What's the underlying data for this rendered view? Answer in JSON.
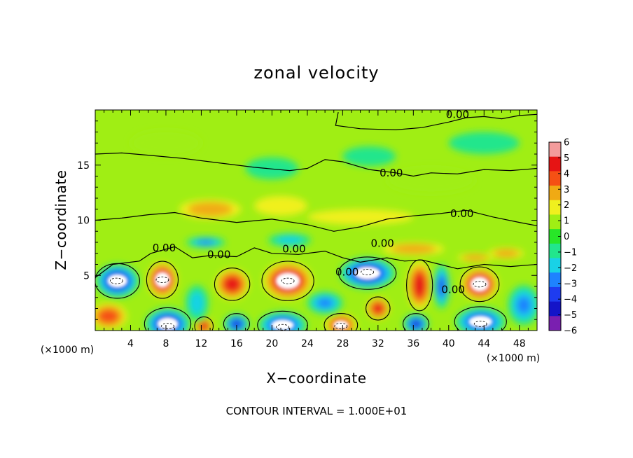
{
  "chart_data": {
    "type": "heatmap",
    "title": "zonal velocity",
    "xlabel": "X−coordinate",
    "ylabel": "Z−coordinate",
    "x_unit_label": "(×1000 m)",
    "y_unit_label": "(×1000 m)",
    "xlim": [
      0,
      50
    ],
    "ylim": [
      0,
      20
    ],
    "x_ticks": [
      4,
      8,
      12,
      16,
      20,
      24,
      28,
      32,
      36,
      40,
      44,
      48
    ],
    "y_ticks": [
      5,
      10,
      15
    ],
    "colorbar": {
      "ticks": [
        6,
        5,
        4,
        3,
        2,
        1,
        0,
        -1,
        -2,
        -3,
        -4,
        -5,
        -6
      ],
      "tick_labels": [
        "6",
        "5",
        "4",
        "3",
        "2",
        "1",
        "0",
        "−1",
        "−2",
        "−3",
        "−4",
        "−5",
        "−6"
      ],
      "min": -6,
      "max": 6,
      "colors": [
        "#7a1fb0",
        "#1414c8",
        "#1e3cf0",
        "#1e82ff",
        "#19d2e6",
        "#22e68c",
        "#28e628",
        "#a0ee14",
        "#f0f01e",
        "#f0aa14",
        "#f55014",
        "#e61414",
        "#f39c9c"
      ]
    },
    "contour_labels": [
      {
        "text": "0.00",
        "x": 41,
        "y": 19.6
      },
      {
        "text": "0.00",
        "x": 33.5,
        "y": 14.3
      },
      {
        "text": "0.00",
        "x": 41.5,
        "y": 10.6
      },
      {
        "text": "0.00",
        "x": 32.5,
        "y": 7.9
      },
      {
        "text": "0.00",
        "x": 22.5,
        "y": 7.4
      },
      {
        "text": "0.00",
        "x": 7.8,
        "y": 7.5
      },
      {
        "text": "0.00",
        "x": 14,
        "y": 6.9
      },
      {
        "text": "0.00",
        "x": 28.5,
        "y": 5.3
      },
      {
        "text": "0.00",
        "x": 40.5,
        "y": 3.7
      }
    ],
    "features": [
      {
        "x": 2.5,
        "z": 4.5,
        "rx": 2.4,
        "rz": 1.5,
        "v": -5.5,
        "white": true
      },
      {
        "x": 7.6,
        "z": 4.6,
        "rx": 1.7,
        "rz": 1.6,
        "v": 5.5,
        "white": true
      },
      {
        "x": 15.5,
        "z": 4.2,
        "rx": 1.9,
        "rz": 1.4,
        "v": 4.8
      },
      {
        "x": 21.8,
        "z": 4.5,
        "rx": 2.8,
        "rz": 1.7,
        "v": 5.6,
        "white": true
      },
      {
        "x": 30.8,
        "z": 5.2,
        "rx": 3.1,
        "rz": 1.4,
        "v": -5.6,
        "white": true
      },
      {
        "x": 36.7,
        "z": 4.1,
        "rx": 1.4,
        "rz": 2.2,
        "v": 4.8
      },
      {
        "x": 43.5,
        "z": 4.2,
        "rx": 2.1,
        "rz": 1.5,
        "v": 5.5,
        "white": true
      },
      {
        "x": 1.5,
        "z": 1.3,
        "rx": 2.1,
        "rz": 1.2,
        "v": 4.3
      },
      {
        "x": 8.2,
        "z": 0.6,
        "rx": 2.5,
        "rz": 1.4,
        "v": -5.6,
        "white": true
      },
      {
        "x": 12.3,
        "z": 0.4,
        "rx": 1.0,
        "rz": 0.8,
        "v": 4.5
      },
      {
        "x": 16.0,
        "z": 0.6,
        "rx": 1.4,
        "rz": 0.9,
        "v": -4.8
      },
      {
        "x": 21.2,
        "z": 0.5,
        "rx": 2.7,
        "rz": 1.2,
        "v": -5.4,
        "white": true
      },
      {
        "x": 27.8,
        "z": 0.5,
        "rx": 1.8,
        "rz": 1.0,
        "v": 5.4,
        "white": true
      },
      {
        "x": 32.0,
        "z": 2.0,
        "rx": 1.3,
        "rz": 1.0,
        "v": 5.1
      },
      {
        "x": 36.3,
        "z": 0.6,
        "rx": 1.4,
        "rz": 0.9,
        "v": -4.7
      },
      {
        "x": 43.6,
        "z": 0.8,
        "rx": 2.8,
        "rz": 1.3,
        "v": -5.4,
        "white": true
      },
      {
        "x": 39.2,
        "z": 4.0,
        "rx": 0.9,
        "rz": 2.0,
        "v": -3.6
      },
      {
        "x": 26.0,
        "z": 2.5,
        "rx": 2.0,
        "rz": 1.0,
        "v": -2.8
      },
      {
        "x": 11.5,
        "z": 2.5,
        "rx": 1.3,
        "rz": 1.6,
        "v": -2.2
      },
      {
        "x": 48.5,
        "z": 2.3,
        "rx": 1.8,
        "rz": 1.8,
        "v": -3.0
      },
      {
        "x": 13.0,
        "z": 11.0,
        "rx": 3.5,
        "rz": 0.9,
        "v": 2.5
      },
      {
        "x": 21.0,
        "z": 11.3,
        "rx": 3.0,
        "rz": 0.9,
        "v": 2.3
      },
      {
        "x": 30.0,
        "z": 10.3,
        "rx": 6.0,
        "rz": 0.7,
        "v": 1.6
      },
      {
        "x": 12.5,
        "z": 8.0,
        "rx": 2.2,
        "rz": 0.5,
        "v": -2.6
      },
      {
        "x": 22.0,
        "z": 8.2,
        "rx": 2.4,
        "rz": 0.6,
        "v": -1.9
      },
      {
        "x": 36.0,
        "z": 7.4,
        "rx": 3.5,
        "rz": 0.6,
        "v": 2.6
      },
      {
        "x": 46.5,
        "z": 7.0,
        "rx": 2.0,
        "rz": 0.5,
        "v": 3.0
      },
      {
        "x": 43.0,
        "z": 6.6,
        "rx": 2.0,
        "rz": 0.4,
        "v": 3.2
      },
      {
        "x": 20.0,
        "z": 14.7,
        "rx": 3.0,
        "rz": 1.0,
        "v": -1.3
      },
      {
        "x": 31.0,
        "z": 15.8,
        "rx": 3.0,
        "rz": 0.9,
        "v": -1.2
      },
      {
        "x": 44.0,
        "z": 17.0,
        "rx": 4.0,
        "rz": 1.0,
        "v": -1.2
      },
      {
        "x": 8.0,
        "z": 17.0,
        "rx": 4.0,
        "rz": 1.2,
        "v": 1.2
      },
      {
        "x": 38.0,
        "z": 13.6,
        "rx": 5.0,
        "rz": 1.2,
        "v": 1.0
      }
    ],
    "white_cores": [
      {
        "x": 2.4,
        "z": 4.5
      },
      {
        "x": 7.6,
        "z": 4.6
      },
      {
        "x": 21.8,
        "z": 4.5
      },
      {
        "x": 30.8,
        "z": 5.3
      },
      {
        "x": 43.5,
        "z": 4.2
      },
      {
        "x": 8.2,
        "z": 0.4
      },
      {
        "x": 21.2,
        "z": 0.3
      },
      {
        "x": 27.8,
        "z": 0.4
      },
      {
        "x": 43.6,
        "z": 0.6
      }
    ]
  },
  "footer": "CONTOUR INTERVAL = 1.000E+01"
}
